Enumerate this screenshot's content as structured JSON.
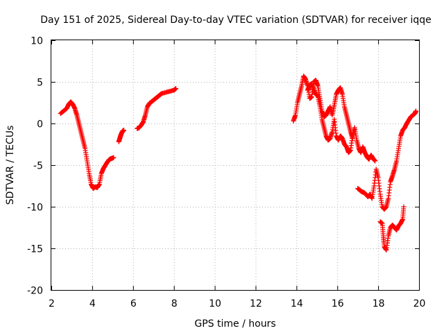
{
  "chart_data": {
    "type": "scatter",
    "title": "Day 151 of 2025, Sidereal Day-to-day VTEC variation (SDTVAR) for receiver iqqe",
    "xlabel": "GPS time / hours",
    "ylabel": "SDTVAR / TECUs",
    "xlim": [
      2,
      20
    ],
    "ylim": [
      -20,
      10
    ],
    "xticks": [
      "2",
      "4",
      "6",
      "8",
      "10",
      "12",
      "14",
      "16",
      "18",
      "20"
    ],
    "yticks": [
      "10",
      "5",
      "0",
      "-5",
      "-10",
      "-15",
      "-20"
    ],
    "grid": true,
    "marker": "+",
    "color": "#ff0000",
    "series": [
      {
        "name": "SDTVAR",
        "segments": [
          {
            "x": [
              2.45,
              2.6,
              2.75,
              2.85,
              2.95,
              3.05,
              3.15,
              3.25,
              3.35,
              3.45,
              3.55,
              3.65,
              3.75,
              3.85,
              3.95,
              4.05,
              4.15,
              4.25,
              4.35,
              4.45,
              4.55,
              4.65,
              4.75,
              4.85,
              4.95,
              5.05
            ],
            "y": [
              1.2,
              1.5,
              1.8,
              2.3,
              2.6,
              2.3,
              1.8,
              1.0,
              0.0,
              -1.0,
              -2.0,
              -3.0,
              -4.5,
              -6.0,
              -7.3,
              -7.8,
              -7.6,
              -7.7,
              -7.3,
              -6.0,
              -5.4,
              -5.0,
              -4.6,
              -4.3,
              -4.2,
              -4.1
            ]
          },
          {
            "x": [
              5.3,
              5.35,
              5.4,
              5.45,
              5.5,
              5.55
            ],
            "y": [
              -2.2,
              -1.8,
              -1.4,
              -1.1,
              -0.9,
              -0.8
            ]
          },
          {
            "x": [
              6.2,
              6.3,
              6.4,
              6.5,
              6.6,
              6.7,
              6.8,
              6.9,
              7.0,
              7.1,
              7.2,
              7.3,
              7.4,
              7.7,
              8.0,
              8.1
            ],
            "y": [
              -0.6,
              -0.5,
              -0.2,
              0.2,
              1.0,
              2.0,
              2.4,
              2.6,
              2.8,
              3.0,
              3.2,
              3.4,
              3.6,
              3.8,
              4.0,
              4.2
            ]
          },
          {
            "x": [
              13.85,
              13.95,
              14.05,
              14.15,
              14.25,
              14.35,
              14.45,
              14.55,
              14.65,
              14.75,
              14.85,
              14.95,
              15.05,
              15.15,
              15.25,
              15.35,
              15.45,
              15.55,
              15.65,
              15.75,
              15.85,
              15.95,
              16.05,
              16.15,
              16.25,
              16.35,
              16.45,
              16.55,
              16.65,
              16.75
            ],
            "y": [
              0.3,
              1.0,
              2.5,
              3.5,
              4.5,
              5.7,
              5.3,
              4.5,
              3.0,
              3.2,
              5.0,
              5.2,
              4.5,
              3.0,
              1.5,
              0.8,
              1.0,
              1.5,
              2.0,
              1.0,
              2.2,
              3.5,
              4.0,
              4.3,
              3.5,
              2.0,
              1.0,
              0.0,
              -1.0,
              -1.8
            ]
          },
          {
            "x": [
              14.55,
              14.65,
              14.75,
              14.85,
              14.95,
              15.05,
              15.15,
              15.25,
              15.35,
              15.45,
              15.55,
              15.65,
              15.75,
              15.85,
              15.95,
              16.05,
              16.15,
              16.25,
              16.35,
              16.45,
              16.55,
              16.65,
              16.75,
              16.85,
              16.95,
              17.05,
              17.15,
              17.25,
              17.35,
              17.45,
              17.55,
              17.65,
              17.75,
              17.85
            ],
            "y": [
              4.0,
              4.6,
              4.8,
              4.0,
              3.5,
              3.3,
              2.0,
              0.5,
              -0.5,
              -1.5,
              -2.0,
              -1.8,
              -1.0,
              0.5,
              -1.5,
              -2.0,
              -1.5,
              -1.8,
              -2.5,
              -2.8,
              -3.5,
              -3.2,
              -1.5,
              -0.5,
              -2.0,
              -3.0,
              -3.5,
              -2.8,
              -3.5,
              -4.0,
              -4.3,
              -3.8,
              -4.2,
              -4.5
            ]
          },
          {
            "x": [
              17.0,
              17.1,
              17.2,
              17.3,
              17.4,
              17.5,
              17.6,
              17.7,
              17.8,
              17.9,
              18.0,
              18.1,
              18.2,
              18.3,
              18.4,
              18.5,
              18.6,
              18.7,
              18.8,
              18.9,
              19.0,
              19.1,
              19.2,
              19.3,
              19.4,
              19.5,
              19.6,
              19.7,
              19.8,
              19.85
            ],
            "y": [
              -7.8,
              -8.0,
              -8.2,
              -8.3,
              -8.5,
              -8.8,
              -8.5,
              -9.0,
              -7.5,
              -5.5,
              -6.5,
              -8.5,
              -10.0,
              -10.3,
              -10.0,
              -9.0,
              -7.0,
              -6.3,
              -5.5,
              -4.5,
              -3.0,
              -1.5,
              -0.8,
              -0.5,
              0.0,
              0.4,
              0.8,
              1.0,
              1.2,
              1.5
            ]
          },
          {
            "x": [
              18.1,
              18.2,
              18.25,
              18.3,
              18.4,
              18.5,
              18.6,
              18.7,
              18.8,
              18.9,
              19.0,
              19.1,
              19.2,
              19.25
            ],
            "y": [
              -11.8,
              -12.0,
              -13.5,
              -14.8,
              -15.2,
              -13.5,
              -12.5,
              -12.2,
              -12.5,
              -12.8,
              -12.3,
              -12.0,
              -11.5,
              -10.0
            ]
          }
        ]
      }
    ]
  }
}
